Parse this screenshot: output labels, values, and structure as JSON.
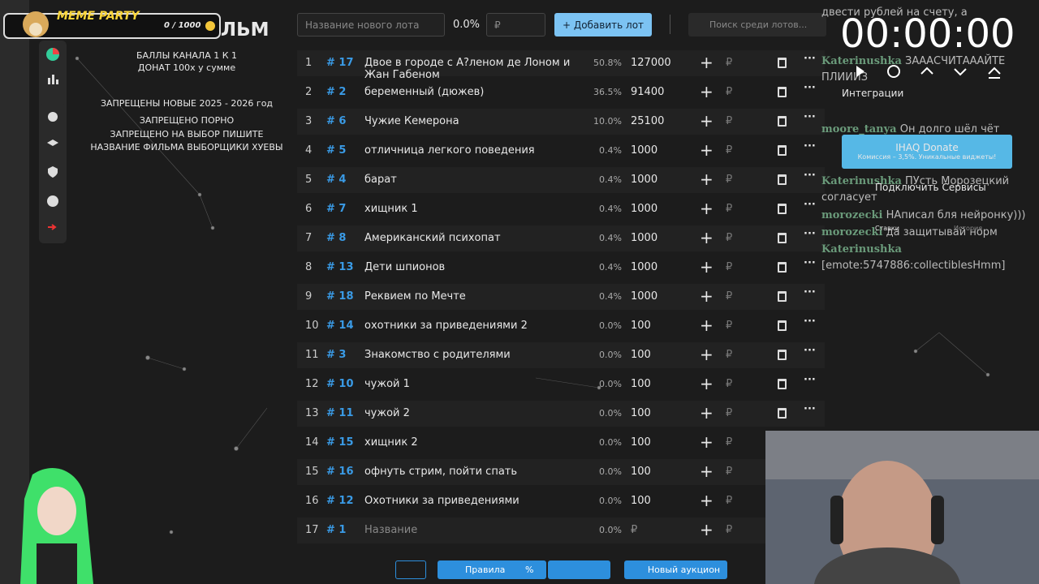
{
  "overlay": {
    "badge": "MEME PARTY",
    "points": "0 / 1000"
  },
  "board": {
    "title": "ЛЬМ",
    "rules": [
      "БАЛЛЫ КАНАЛА 1 К 1",
      "ДОНАТ 100х у сумме",
      "ЗАПРЕЩЕНЫ НОВЫЕ 2025 - 2026 год",
      "ЗАПРЕЩЕНО ПОРНО",
      "ЗАПРЕЩЕНО НА ВЫБОР ПИШИТЕ",
      "НАЗВАНИЕ ФИЛЬМА ВЫБОРЩИКИ ХУЕВЫ"
    ]
  },
  "toolbar": {
    "name_placeholder": "Название нового лота",
    "percent": "0.0%",
    "currency": "₽",
    "add_button": "Добавить лот",
    "search_placeholder": "Поиск среди лотов..."
  },
  "lots": [
    {
      "n": "1",
      "id": "# 17",
      "name": "Двое в городе с А?леном де Лоном и Жан Габеном",
      "pct": "50.8%",
      "amount": "127000",
      "deletable": true
    },
    {
      "n": "2",
      "id": "# 2",
      "name": "беременный (дюжев)",
      "pct": "36.5%",
      "amount": "91400",
      "deletable": true
    },
    {
      "n": "3",
      "id": "# 6",
      "name": "Чужие Кемерона",
      "pct": "10.0%",
      "amount": "25100",
      "deletable": true
    },
    {
      "n": "4",
      "id": "# 5",
      "name": "отличница легкого поведения",
      "pct": "0.4%",
      "amount": "1000",
      "deletable": true
    },
    {
      "n": "5",
      "id": "# 4",
      "name": "барат",
      "pct": "0.4%",
      "amount": "1000",
      "deletable": true
    },
    {
      "n": "6",
      "id": "# 7",
      "name": "хищник 1",
      "pct": "0.4%",
      "amount": "1000",
      "deletable": true
    },
    {
      "n": "7",
      "id": "# 8",
      "name": "Американский психопат",
      "pct": "0.4%",
      "amount": "1000",
      "deletable": true
    },
    {
      "n": "8",
      "id": "# 13",
      "name": "Дети шпионов",
      "pct": "0.4%",
      "amount": "1000",
      "deletable": true
    },
    {
      "n": "9",
      "id": "# 18",
      "name": "Реквием по Мечте",
      "pct": "0.4%",
      "amount": "1000",
      "deletable": true
    },
    {
      "n": "10",
      "id": "# 14",
      "name": "охотники за приведениями 2",
      "pct": "0.0%",
      "amount": "100",
      "deletable": true
    },
    {
      "n": "11",
      "id": "# 3",
      "name": "Знакомство с родителями",
      "pct": "0.0%",
      "amount": "100",
      "deletable": true
    },
    {
      "n": "12",
      "id": "# 10",
      "name": "чужой 1",
      "pct": "0.0%",
      "amount": "100",
      "deletable": true
    },
    {
      "n": "13",
      "id": "# 11",
      "name": "чужой 2",
      "pct": "0.0%",
      "amount": "100",
      "deletable": true
    },
    {
      "n": "14",
      "id": "# 15",
      "name": "хищник 2",
      "pct": "0.0%",
      "amount": "100",
      "deletable": false
    },
    {
      "n": "15",
      "id": "# 16",
      "name": "офнуть стрим, пойти спать",
      "pct": "0.0%",
      "amount": "100",
      "deletable": false
    },
    {
      "n": "16",
      "id": "# 12",
      "name": "Охотники за приведениями",
      "pct": "0.0%",
      "amount": "100",
      "deletable": false
    },
    {
      "n": "17",
      "id": "# 1",
      "name": "Название",
      "pct": "0.0%",
      "deletable": false
    }
  ],
  "timer": {
    "time": "00:00:00",
    "integrations": "Интеграции",
    "donate": "IHAQ Donate",
    "donate_note": "Комиссия – 3,5%. Уникальные виджеты!",
    "connect": "Подключить Сервисы",
    "tabs": [
      "Ставки",
      "История"
    ]
  },
  "chat": [
    {
      "text": "двести рублей на счету, а"
    },
    {
      "user": "Katerinushka",
      "text": "ЗАААСЧИТАААЙТЕ ПЛИИИЗ"
    },
    {
      "user": "moore_tanya",
      "text": "Он долго шёл чёт"
    },
    {
      "user": "Katerinushka",
      "text": "ПУсть Морозецкий согласует"
    },
    {
      "user": "morozecki",
      "text": "НАписал бля нейронку)))"
    },
    {
      "user": "morozecki",
      "text": "да защитывай норм"
    },
    {
      "user": "Katerinushka",
      "text": "[emote:5747886:collectiblesHmm]"
    }
  ],
  "bottom": {
    "rules": "Правила",
    "percent": "%",
    "new_auction": "Новый аукцион"
  }
}
